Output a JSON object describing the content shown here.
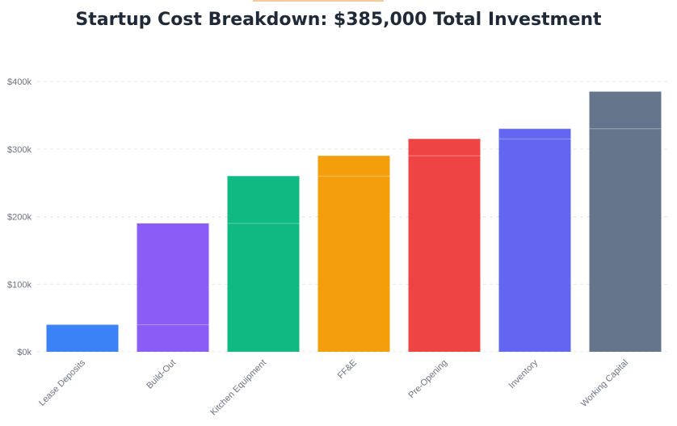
{
  "title": "Startup Cost Breakdown: $385,000 Total Investment",
  "chart_data": {
    "type": "bar",
    "subtype": "waterfall-cumulative",
    "title": "Startup Cost Breakdown: $385,000 Total Investment",
    "xlabel": "",
    "ylabel": "",
    "ylim": [
      0,
      400000
    ],
    "yticks": [
      0,
      100000,
      200000,
      300000,
      400000
    ],
    "ytick_labels": [
      "$0k",
      "$100k",
      "$200k",
      "$300k",
      "$400k"
    ],
    "grid": true,
    "categories": [
      "Lease Deposits",
      "Build-Out",
      "Kitchen Equipment",
      "FF&E",
      "Pre-Opening",
      "Inventory",
      "Working Capital"
    ],
    "cumulative": [
      40000,
      190000,
      260000,
      290000,
      315000,
      330000,
      385000
    ],
    "colors": [
      "#3b82f6",
      "#8b5cf6",
      "#10b981",
      "#f59e0b",
      "#ef4444",
      "#6366f1",
      "#64748b"
    ]
  }
}
